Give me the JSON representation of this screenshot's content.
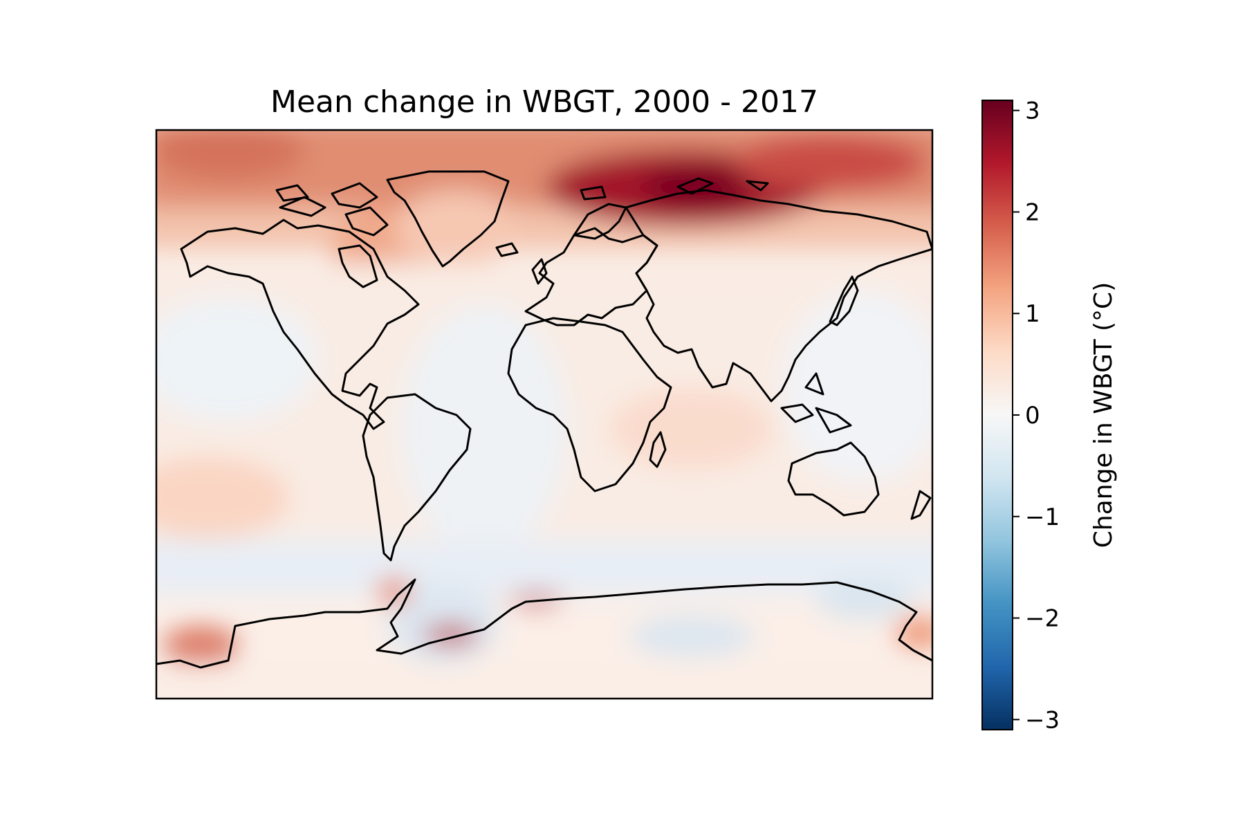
{
  "title": "Mean change in WBGT, 2000 - 2017",
  "colorbar": {
    "label": "Change in WBGT (°C)",
    "colormap": "RdBu_r",
    "range": [
      -3.1,
      3.1
    ],
    "tick_values": [
      3,
      2,
      1,
      0,
      -1,
      -2,
      -3
    ],
    "tick_labels": [
      "3",
      "2",
      "1",
      "0",
      "−1",
      "−2",
      "−3"
    ],
    "stops": [
      {
        "t": 0.0,
        "color": "#053061"
      },
      {
        "t": 0.1,
        "color": "#2166ac"
      },
      {
        "t": 0.2,
        "color": "#4393c3"
      },
      {
        "t": 0.3,
        "color": "#92c5de"
      },
      {
        "t": 0.4,
        "color": "#d1e5f0"
      },
      {
        "t": 0.5,
        "color": "#f7f7f7"
      },
      {
        "t": 0.6,
        "color": "#fddbc7"
      },
      {
        "t": 0.7,
        "color": "#f4a582"
      },
      {
        "t": 0.8,
        "color": "#d6604d"
      },
      {
        "t": 0.9,
        "color": "#b2182b"
      },
      {
        "t": 1.0,
        "color": "#67001f"
      }
    ]
  },
  "map": {
    "projection": "PlateCarree",
    "coastlines": true,
    "field_description_hint": "strong warming in high northern latitudes, peak over northern Siberia/Kara Sea; near-zero over most oceans and tropics; slight cooling patches in Southern Ocean; warming spots along Antarctic coast"
  }
}
